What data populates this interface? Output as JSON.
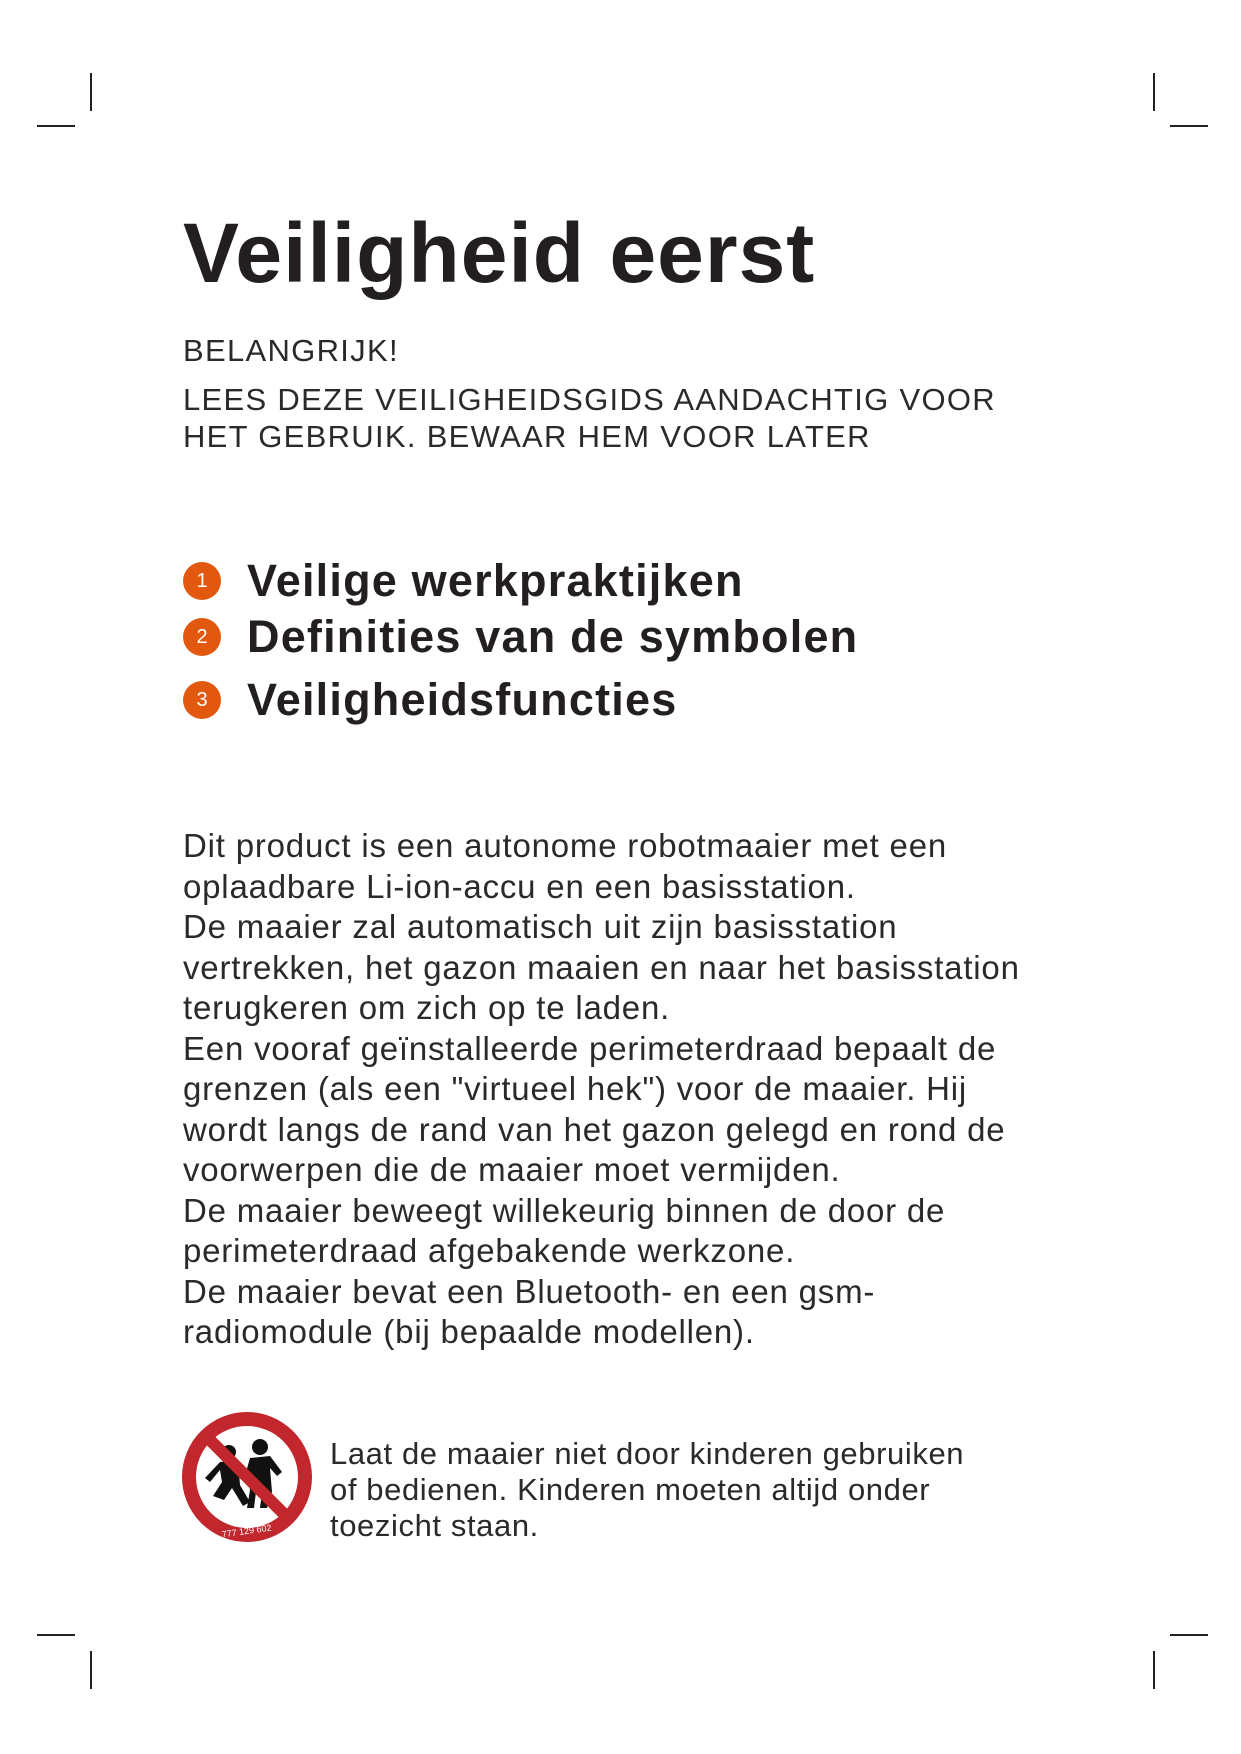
{
  "title": "Veiligheid eerst",
  "important": "BELANGRIJK!",
  "instruction_lines": [
    "LEES DEZE VEILIGHEIDSGIDS AANDACHTIG VOOR",
    "HET GEBRUIK. BEWAAR HEM VOOR LATER"
  ],
  "toc": [
    {
      "number": "1",
      "label": "Veilige werkpraktijken"
    },
    {
      "number": "2",
      "label": "Definities van de symbolen"
    },
    {
      "number": "3",
      "label": "Veiligheidsfuncties"
    }
  ],
  "accent_color": "#e2580e",
  "body_lines": [
    "Dit product is een autonome robotmaaier met een",
    "oplaadbare Li-ion-accu en een basisstation.",
    "De maaier zal automatisch uit zijn basisstation",
    "vertrekken, het gazon maaien en naar het basisstation",
    "terugkeren om zich op te laden.",
    "Een vooraf geïnstalleerde perimeterdraad bepaalt de",
    "grenzen (als een \"virtueel hek\") voor de maaier. Hij",
    "wordt langs de rand van het gazon gelegd en rond de",
    "voorwerpen die de maaier moet vermijden.",
    "De maaier beweegt willekeurig binnen de door de",
    "perimeterdraad afgebakende werkzone.",
    "De maaier bevat een Bluetooth- en een gsm-",
    "radiomodule (bij bepaalde modellen)."
  ],
  "warning": {
    "icon": "no-children-prohibition-icon",
    "icon_code": "777 129 602",
    "icon_color": "#c1272d",
    "lines": [
      "Laat de maaier niet door kinderen gebruiken",
      "of bedienen. Kinderen moeten altijd onder",
      "toezicht staan."
    ]
  }
}
